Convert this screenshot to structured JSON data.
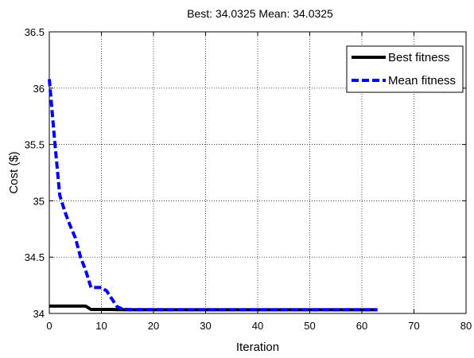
{
  "chart_data": {
    "type": "line",
    "title": "Best: 34.0325 Mean: 34.0325",
    "xlabel": "Iteration",
    "ylabel": "Cost ($)",
    "xlim": [
      0,
      80
    ],
    "ylim": [
      34,
      36.5
    ],
    "xticks": [
      0,
      10,
      20,
      30,
      40,
      50,
      60,
      70,
      80
    ],
    "yticks": [
      34,
      34.5,
      35,
      35.5,
      36,
      36.5
    ],
    "xtick_labels": [
      "0",
      "10",
      "20",
      "30",
      "40",
      "50",
      "60",
      "70",
      "80"
    ],
    "ytick_labels": [
      "34",
      "34.5",
      "35",
      "35.5",
      "36",
      "36.5"
    ],
    "grid": true,
    "legend": "top-right",
    "series": [
      {
        "name": "Best fitness",
        "color": "#000000",
        "style": "solid",
        "x": [
          0,
          1,
          2,
          3,
          4,
          5,
          6,
          7,
          8,
          9,
          10,
          11,
          12,
          13,
          14,
          15,
          63
        ],
        "y": [
          34.065,
          34.065,
          34.065,
          34.065,
          34.065,
          34.065,
          34.065,
          34.065,
          34.035,
          34.035,
          34.035,
          34.035,
          34.035,
          34.033,
          34.033,
          34.0325,
          34.0325
        ]
      },
      {
        "name": "Mean fitness",
        "color": "#0000ff",
        "style": "dashed",
        "x": [
          0,
          1,
          2,
          3,
          4,
          5,
          6,
          7,
          8,
          9,
          10,
          11,
          12,
          13,
          14,
          15,
          16,
          63
        ],
        "y": [
          36.08,
          35.55,
          35.05,
          34.9,
          34.78,
          34.67,
          34.5,
          34.38,
          34.23,
          34.23,
          34.23,
          34.2,
          34.13,
          34.06,
          34.04,
          34.035,
          34.033,
          34.0325
        ]
      }
    ]
  }
}
